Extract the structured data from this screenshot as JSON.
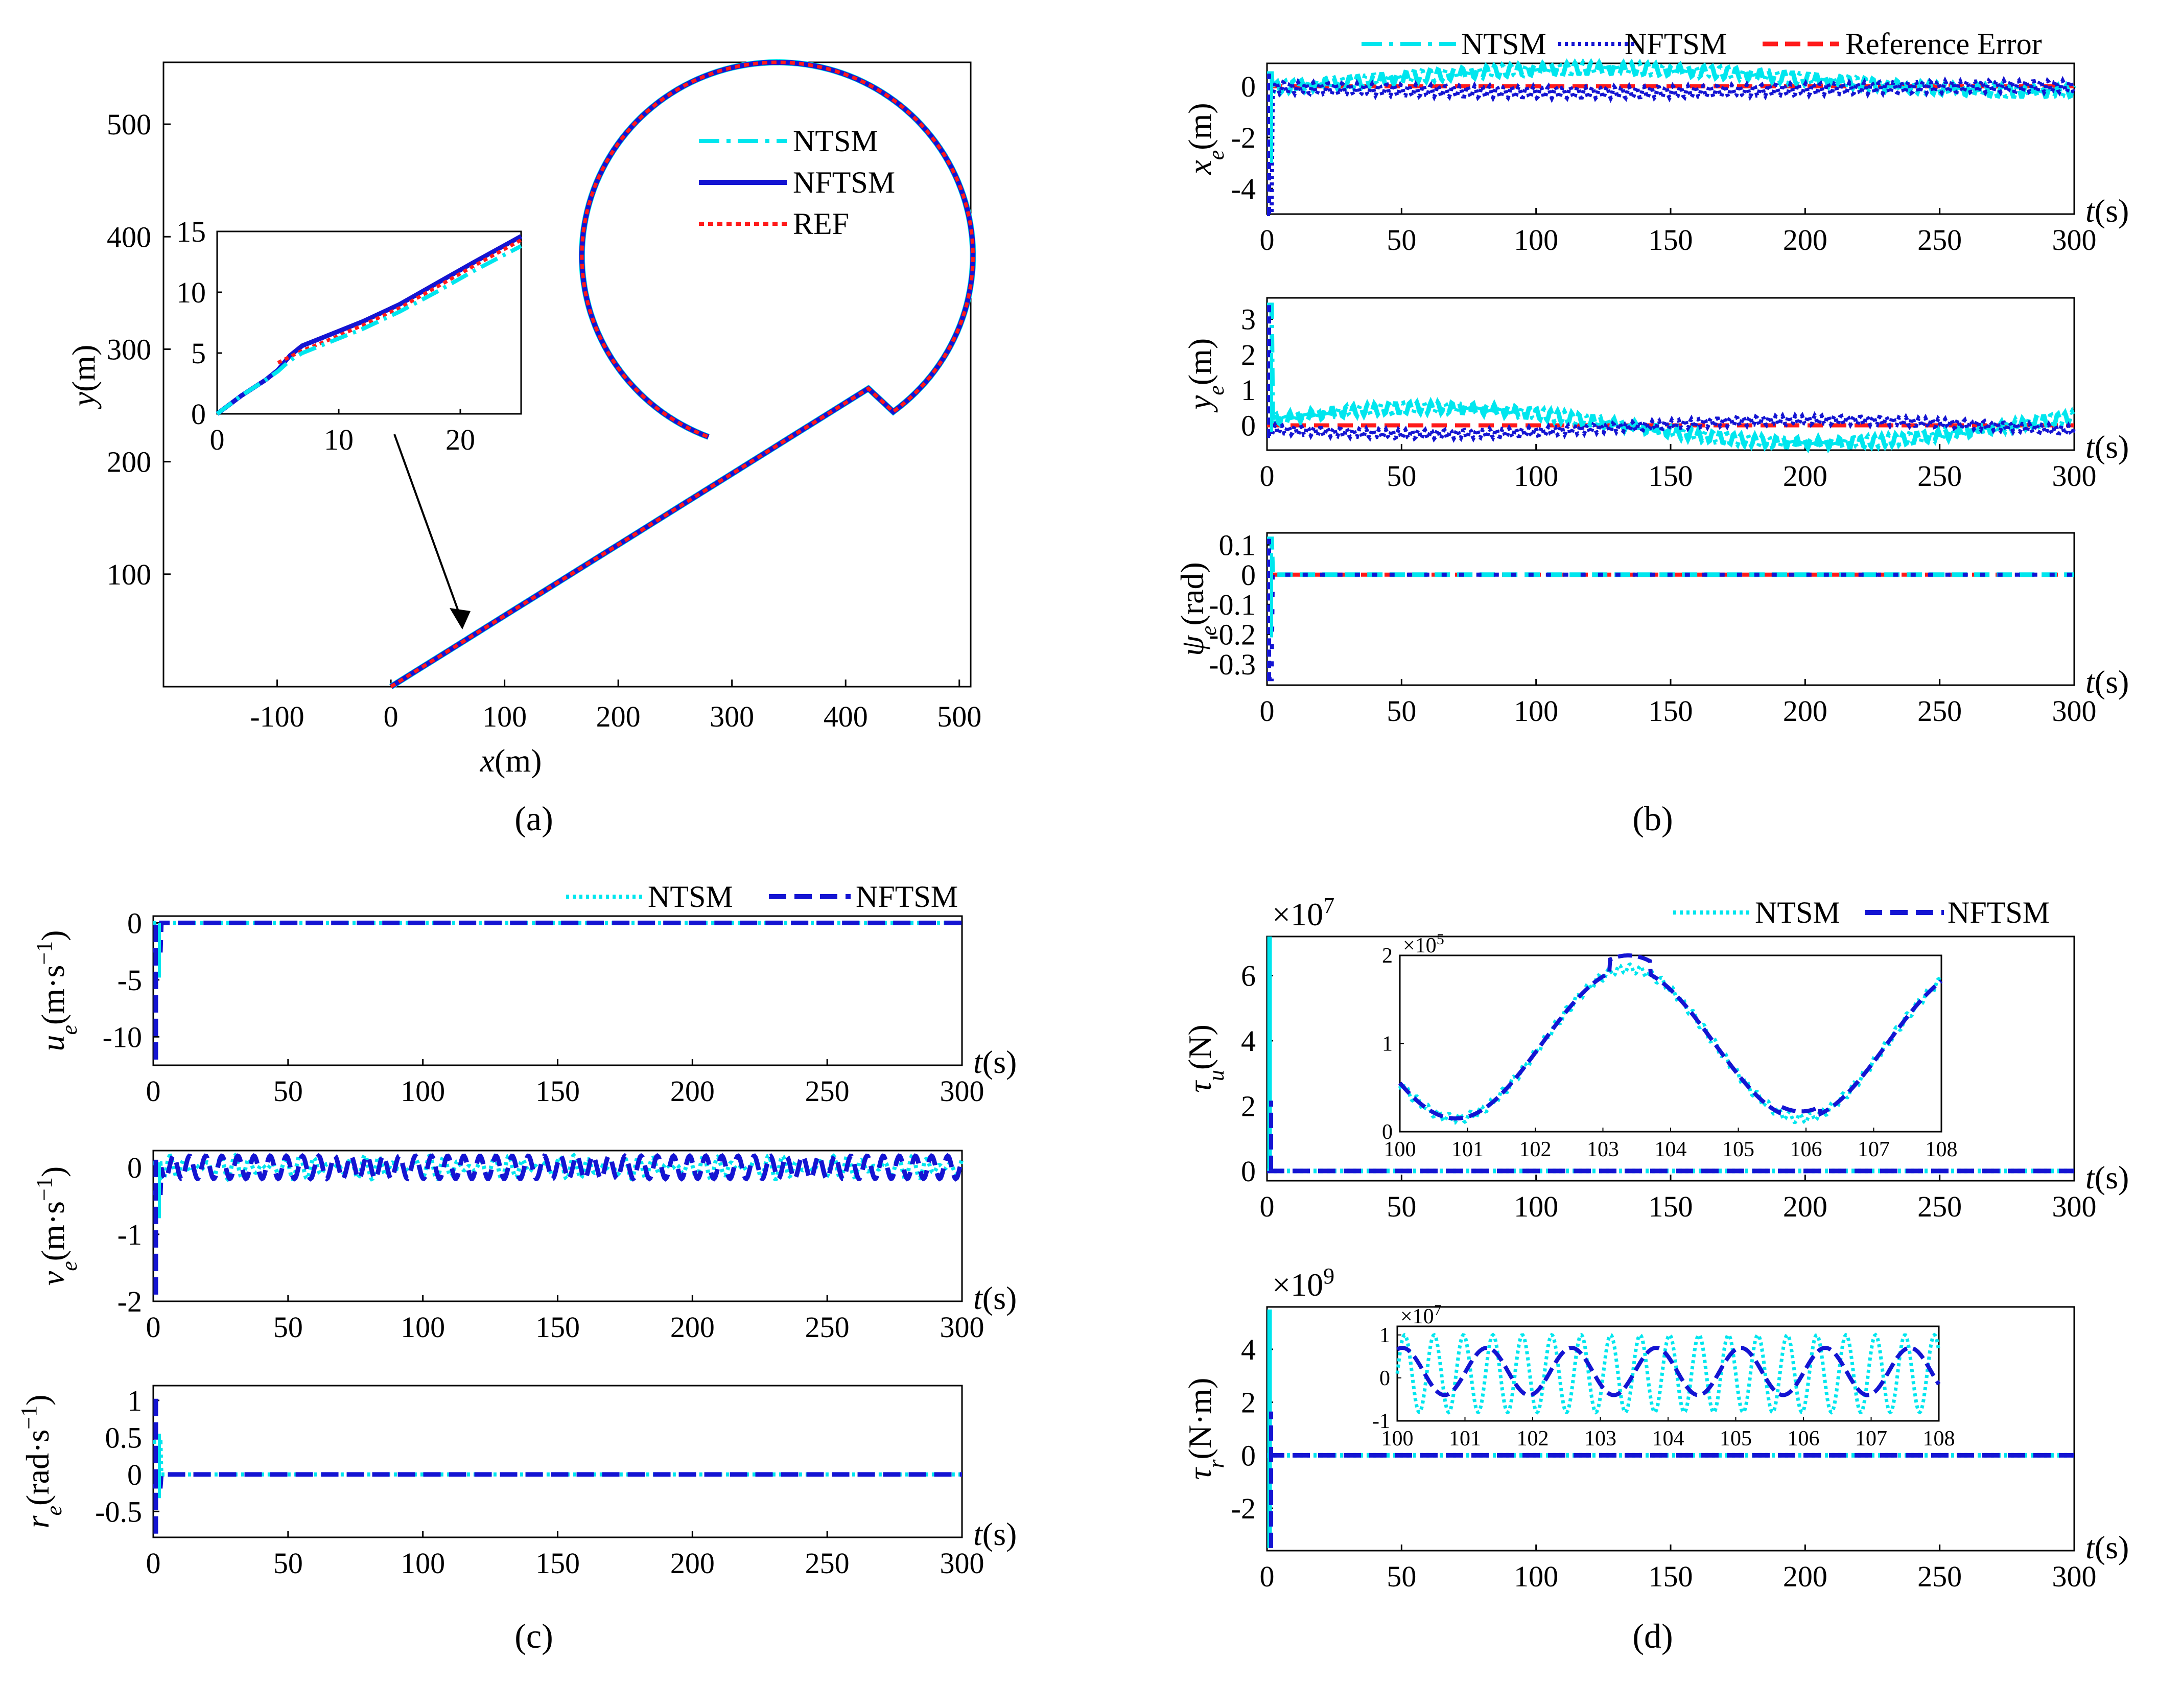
{
  "colors": {
    "ntsm": "#00e6ee",
    "nftsm": "#1414d2",
    "ref": "#ff1a1a"
  },
  "captions": {
    "a": "(a)",
    "b": "(b)",
    "c": "(c)",
    "d": "(d)"
  },
  "chart_data": [
    {
      "id": "a",
      "type": "line",
      "xlabel": "x(m)",
      "ylabel": "y(m)",
      "xlim": [
        -200,
        510
      ],
      "ylim": [
        0,
        555
      ],
      "xticks": [
        "-100",
        "0",
        "100",
        "200",
        "300",
        "400",
        "500"
      ],
      "yticks": [
        "100",
        "200",
        "300",
        "400",
        "500"
      ],
      "legend": [
        "NTSM",
        "NFTSM",
        "REF"
      ],
      "series": [
        {
          "name": "REF",
          "path": "straight line from (0,0) to (420,265) then circle centered (340,383) radius 165 ending at (285,237)"
        }
      ],
      "inset": {
        "xlim": [
          0,
          25
        ],
        "ylim": [
          0,
          15
        ],
        "xticks": [
          "0",
          "10",
          "20"
        ],
        "yticks": [
          "0",
          "5",
          "10",
          "15"
        ],
        "series": [
          {
            "name": "NFTSM",
            "x": [
              0,
              2,
              4,
              5,
              6,
              7,
              9,
              12,
              15,
              18,
              21,
              25
            ],
            "y": [
              0,
              1.5,
              2.8,
              3.6,
              4.8,
              5.6,
              6.4,
              7.6,
              9.0,
              10.7,
              12.4,
              14.6
            ]
          },
          {
            "name": "REF",
            "x": [
              5,
              7,
              9,
              12,
              15,
              18,
              21,
              25
            ],
            "y": [
              4.2,
              5.2,
              6.0,
              7.3,
              8.7,
              10.4,
              12.1,
              14.3
            ]
          },
          {
            "name": "NTSM",
            "x": [
              0,
              2,
              4,
              5,
              6,
              7,
              9,
              12,
              15,
              18,
              21,
              25
            ],
            "y": [
              0,
              1.5,
              2.8,
              3.5,
              4.4,
              5.0,
              5.8,
              7.0,
              8.4,
              10.0,
              11.7,
              13.8
            ]
          }
        ]
      }
    },
    {
      "id": "b",
      "type": "line",
      "legend": [
        "NTSM",
        "NFTSM",
        "Reference Error"
      ],
      "xlabel": "t(s)",
      "xticks": [
        "0",
        "50",
        "100",
        "150",
        "200",
        "250",
        "300"
      ],
      "subplots": [
        {
          "ylabel": "x_e(m)",
          "yticks": [
            "0",
            "-2",
            "-4"
          ],
          "ylim": [
            -5,
            0.9
          ],
          "spike": [
            -5,
            0.5
          ],
          "ntsm": "0.2 + 0.4*sin(2*pi*(t-5)/390) with small oscillation",
          "nftsm": "-0.15 + 0.3 oscillation band"
        },
        {
          "ylabel": "y_e(m)",
          "yticks": [
            "3",
            "2",
            "1",
            "0"
          ],
          "ylim": [
            -0.7,
            3.6
          ],
          "spike": [
            -0.3,
            3.4
          ],
          "ntsm": "0.5*cos(2*pi*(t-60)/290)",
          "nftsm": "-0.2 to 0.3 band"
        },
        {
          "ylabel": "ψ_e(rad)",
          "yticks": [
            "0.1",
            "0",
            "-0.1",
            "-0.2",
            "-0.3"
          ],
          "ylim": [
            -0.37,
            0.14
          ],
          "spike": [
            -0.35,
            0.12
          ]
        }
      ]
    },
    {
      "id": "c",
      "type": "line",
      "legend": [
        "NTSM",
        "NFTSM"
      ],
      "xlabel": "t(s)",
      "xticks": [
        "0",
        "50",
        "100",
        "150",
        "200",
        "250",
        "300"
      ],
      "subplots": [
        {
          "ylabel": "u_e(m·s⁻¹)",
          "yticks": [
            "0",
            "-5",
            "-10"
          ],
          "ylim": [
            -12.5,
            0.6
          ],
          "spike": [
            -12,
            0
          ]
        },
        {
          "ylabel": "v_e(m·s⁻¹)",
          "yticks": [
            "0",
            "-1",
            "-2"
          ],
          "ylim": [
            -2,
            0.25
          ],
          "spike": [
            -1.9,
            0.15
          ],
          "band": [
            -0.2,
            0.2
          ]
        },
        {
          "ylabel": "r_e(rad·s⁻¹)",
          "yticks": [
            "1",
            "0.5",
            "0",
            "-0.5"
          ],
          "ylim": [
            -0.85,
            1.2
          ],
          "spike": [
            -0.8,
            1.1
          ]
        }
      ]
    },
    {
      "id": "d",
      "type": "line",
      "legend": [
        "NTSM",
        "NFTSM"
      ],
      "xlabel": "t(s)",
      "xticks": [
        "0",
        "50",
        "100",
        "150",
        "200",
        "250",
        "300"
      ],
      "subplots": [
        {
          "ylabel": "τ_u(N)",
          "exp": "×10",
          "expPow": "7",
          "yticks": [
            "6",
            "4",
            "2",
            "0"
          ],
          "ylim": [
            -0.3,
            7.2
          ],
          "spike": [
            0,
            7.2
          ],
          "inset": {
            "exp": "×10",
            "expPow": "5",
            "xlim": [
              100,
              108
            ],
            "ylim": [
              0,
              2
            ],
            "xticks": [
              "100",
              "101",
              "102",
              "103",
              "104",
              "105",
              "106",
              "107",
              "108"
            ],
            "yticks": [
              "2",
              "1",
              "0"
            ]
          }
        },
        {
          "ylabel": "τ_r(N·m)",
          "exp": "×10",
          "expPow": "9",
          "yticks": [
            "4",
            "2",
            "0",
            "-2"
          ],
          "ylim": [
            -3.6,
            5.6
          ],
          "spike": [
            -3.5,
            5.5
          ],
          "inset": {
            "exp": "×10",
            "expPow": "7",
            "xlim": [
              100,
              108
            ],
            "ylim": [
              -1,
              1.2
            ],
            "xticks": [
              "100",
              "101",
              "102",
              "103",
              "104",
              "105",
              "106",
              "107",
              "108"
            ],
            "yticks": [
              "1",
              "0",
              "-1"
            ]
          }
        }
      ]
    }
  ]
}
